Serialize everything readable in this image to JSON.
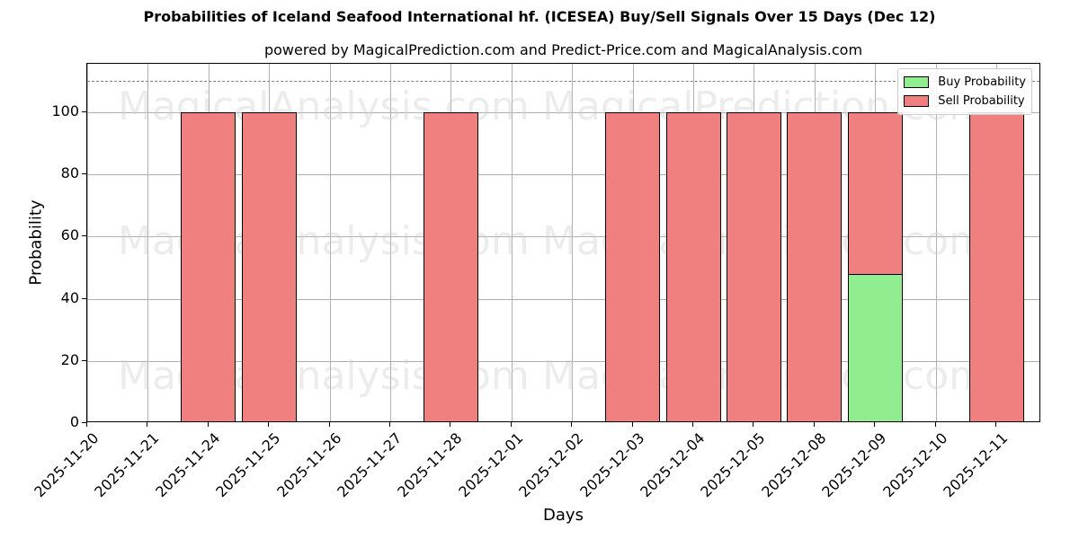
{
  "header": {
    "title": "Probabilities of Iceland Seafood International hf. (ICESEA) Buy/Sell Signals Over 15 Days (Dec 12)",
    "subtitle": "powered by MagicalPrediction.com and Predict-Price.com and MagicalAnalysis.com"
  },
  "axes": {
    "xlabel": "Days",
    "ylabel": "Probability",
    "yticks": [
      "0",
      "20",
      "40",
      "60",
      "80",
      "100"
    ]
  },
  "legend": {
    "buy_label": "Buy Probability",
    "sell_label": "Sell Probability"
  },
  "watermarks": [
    "MagicalAnalysis.com",
    "MagicalPrediction.com"
  ],
  "colors": {
    "buy": "#90ee90",
    "sell": "#f08080",
    "threshold_line": "#808080"
  },
  "chart_data": {
    "type": "bar",
    "stacked": true,
    "title": "Probabilities of Iceland Seafood International hf. (ICESEA) Buy/Sell Signals Over 15 Days (Dec 12)",
    "subtitle": "powered by MagicalPrediction.com and Predict-Price.com and MagicalAnalysis.com",
    "xlabel": "Days",
    "ylabel": "Probability",
    "ylim": [
      0,
      115
    ],
    "grid": true,
    "legend_position": "upper right",
    "threshold_line": 110,
    "categories": [
      "2025-11-20",
      "2025-11-21",
      "2025-11-24",
      "2025-11-25",
      "2025-11-26",
      "2025-11-27",
      "2025-11-28",
      "2025-12-01",
      "2025-12-02",
      "2025-12-03",
      "2025-12-04",
      "2025-12-05",
      "2025-12-08",
      "2025-12-09",
      "2025-12-10",
      "2025-12-11"
    ],
    "series": [
      {
        "name": "Buy Probability",
        "values": [
          0,
          0,
          0,
          0,
          0,
          0,
          0,
          0,
          0,
          0,
          0,
          0,
          0,
          48,
          0,
          0
        ]
      },
      {
        "name": "Sell Probability",
        "values": [
          0,
          0,
          100,
          100,
          0,
          0,
          100,
          0,
          0,
          100,
          100,
          100,
          100,
          52,
          0,
          100
        ]
      }
    ]
  }
}
